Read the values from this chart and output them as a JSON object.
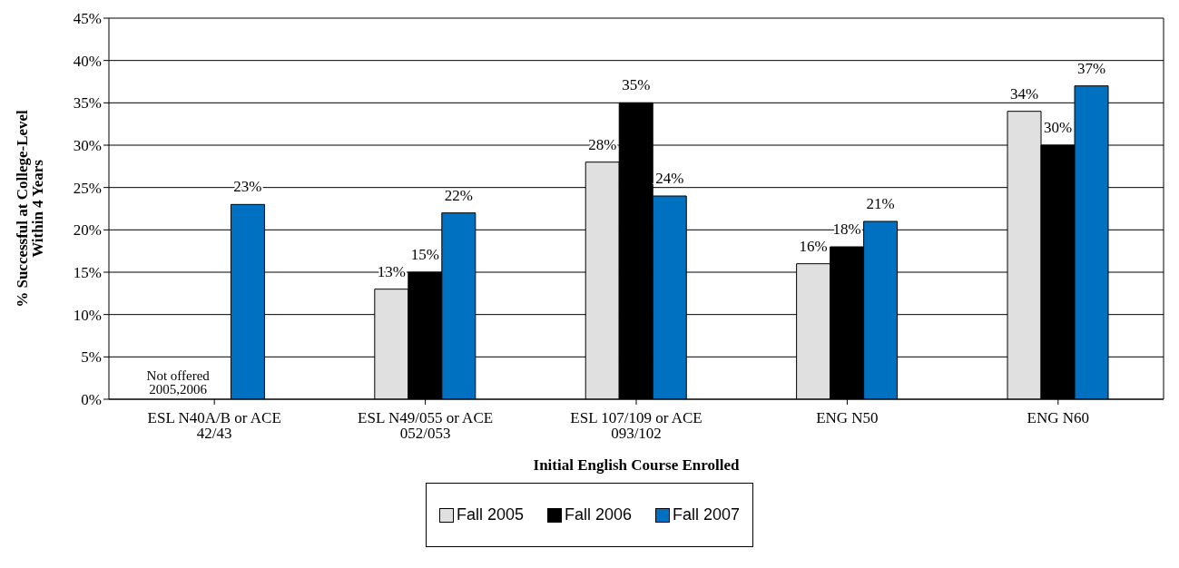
{
  "chart_data": {
    "type": "bar",
    "xlabel": "Initial English Course Enrolled",
    "ylabel": "% Successful at College-Level Within 4 Years",
    "categories": [
      "ESL N40A/B or ACE 42/43",
      "ESL N49/055 or ACE 052/053",
      "ESL 107/109 or ACE 093/102",
      "ENG N50",
      "ENG N60"
    ],
    "series": [
      {
        "name": "Fall 2005",
        "color": "#e0e0e0",
        "values": [
          null,
          13,
          28,
          16,
          34
        ],
        "value_labels": [
          null,
          "13%",
          "28%",
          "16%",
          "34%"
        ]
      },
      {
        "name": "Fall 2006",
        "color": "#000000",
        "values": [
          null,
          15,
          35,
          18,
          30
        ],
        "value_labels": [
          null,
          "15%",
          "35%",
          "18%",
          "30%"
        ]
      },
      {
        "name": "Fall 2007",
        "color": "#0070c0",
        "values": [
          23,
          22,
          24,
          21,
          37
        ],
        "value_labels": [
          "23%",
          "22%",
          "24%",
          "21%",
          "37%"
        ]
      }
    ],
    "ylim": [
      0,
      45
    ],
    "yticks": [
      {
        "value": 0,
        "label": "0%"
      },
      {
        "value": 5,
        "label": "5%"
      },
      {
        "value": 10,
        "label": "10%"
      },
      {
        "value": 15,
        "label": "15%"
      },
      {
        "value": 20,
        "label": "20%"
      },
      {
        "value": 25,
        "label": "25%"
      },
      {
        "value": 30,
        "label": "30%"
      },
      {
        "value": 35,
        "label": "35%"
      },
      {
        "value": 40,
        "label": "40%"
      },
      {
        "value": 45,
        "label": "45%"
      }
    ],
    "grid": "y",
    "legend": "bottom",
    "annotations": [
      "Not offered 2005,2006"
    ]
  }
}
